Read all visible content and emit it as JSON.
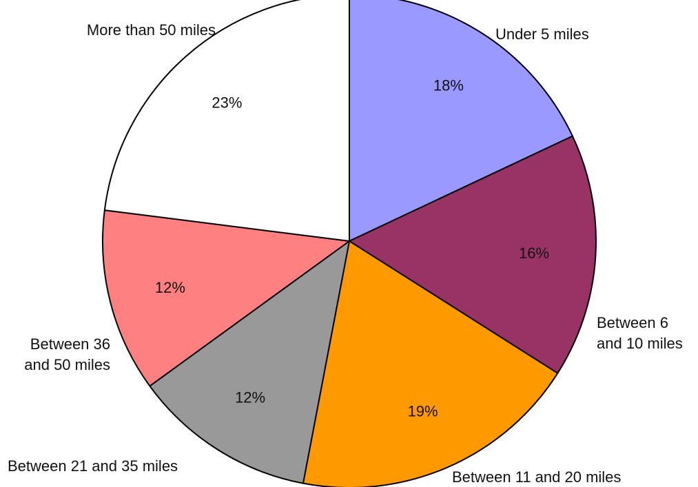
{
  "chart_data": {
    "type": "pie",
    "title": "",
    "start_angle": "12 o'clock",
    "direction": "clockwise",
    "legend": "none",
    "slices": [
      {
        "label": [
          "Under 5 miles"
        ],
        "value": 18,
        "percent_label": "18%",
        "color": "#9999ff"
      },
      {
        "label": [
          "Between 6",
          "and 10 miles"
        ],
        "value": 16,
        "percent_label": "16%",
        "color": "#993366"
      },
      {
        "label": [
          "Between 11 and 20 miles"
        ],
        "value": 19,
        "percent_label": "19%",
        "color": "#ff9900"
      },
      {
        "label": [
          "Between 21 and 35 miles"
        ],
        "value": 12,
        "percent_label": "12%",
        "color": "#999999"
      },
      {
        "label": [
          "Between 36",
          "and 50 miles"
        ],
        "value": 12,
        "percent_label": "12%",
        "color": "#ff8080"
      },
      {
        "label": [
          "More than 50 miles"
        ],
        "value": 23,
        "percent_label": "23%",
        "color": "#ffffff"
      }
    ]
  }
}
